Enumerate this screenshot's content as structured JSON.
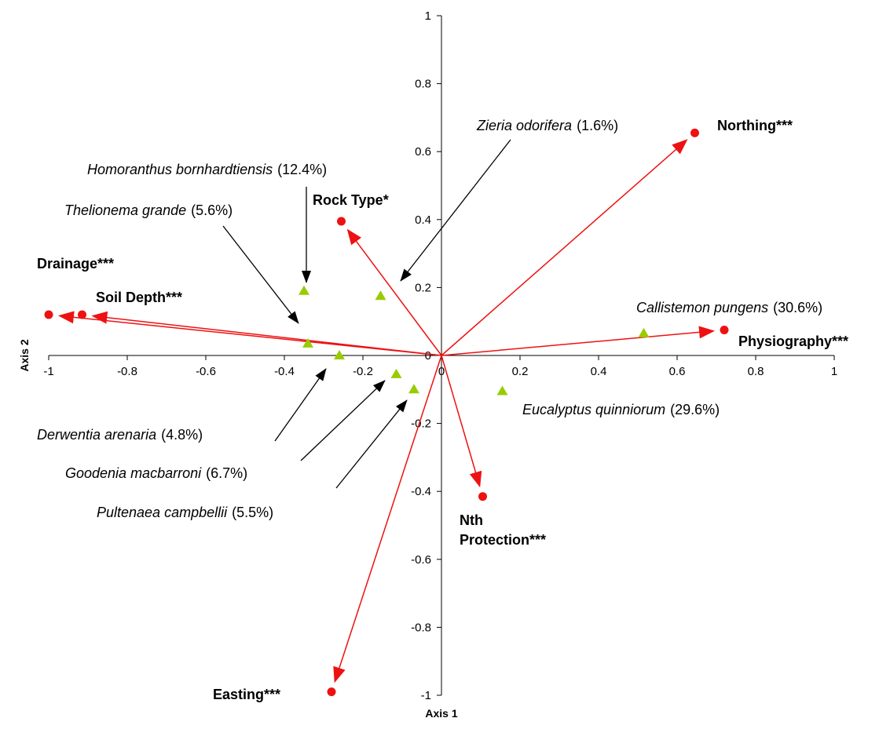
{
  "chart_data": {
    "type": "scatter",
    "xlabel": "Axis 1",
    "ylabel": "Axis 2",
    "xlim": [
      -1,
      1
    ],
    "ylim": [
      -1,
      1
    ],
    "xticks": [
      -1,
      -0.8,
      -0.6,
      -0.4,
      -0.2,
      0,
      0.2,
      0.4,
      0.6,
      0.8,
      1
    ],
    "yticks": [
      1,
      0.8,
      0.6,
      0.4,
      0.2,
      0,
      -0.2,
      -0.4,
      -0.6,
      -0.8,
      -1
    ],
    "tick_labels_x": [
      "-1",
      "-0.8",
      "-0.6",
      "-0.4",
      "-0.2",
      "0",
      "0.2",
      "0.4",
      "0.6",
      "0.8",
      "1"
    ],
    "tick_labels_y": [
      "1",
      "0.8",
      "0.6",
      "0.4",
      "0.2",
      "0",
      "-0.2",
      "-0.4",
      "-0.6",
      "-0.8",
      "-1"
    ],
    "grid": false,
    "colors": {
      "variable": "#ee1111",
      "species": "#99cc00",
      "pointer": "#000000"
    },
    "variables": [
      {
        "label": "Northing***",
        "x": 0.645,
        "y": 0.655,
        "lines": [
          "Northing***"
        ]
      },
      {
        "label": "Rock Type*",
        "x": -0.255,
        "y": 0.395,
        "lines": [
          "Rock Type*"
        ]
      },
      {
        "label": "Drainage***",
        "x": -1.0,
        "y": 0.12,
        "lines": [
          "Drainage***"
        ]
      },
      {
        "label": "Soil Depth***",
        "x": -0.915,
        "y": 0.12,
        "lines": [
          "Soil Depth***"
        ]
      },
      {
        "label": "Physiography***",
        "x": 0.72,
        "y": 0.075,
        "lines": [
          "Physiography***"
        ]
      },
      {
        "label": "Nth Protection***",
        "x": 0.105,
        "y": -0.415,
        "lines": [
          "Nth",
          "Protection***"
        ]
      },
      {
        "label": "Easting***",
        "x": -0.28,
        "y": -0.99,
        "lines": [
          "Easting***"
        ]
      }
    ],
    "species": [
      {
        "name": "Zieria odorifera",
        "pct": "(1.6%)",
        "x": -0.155,
        "y": 0.175
      },
      {
        "name": "Homoranthus bornhardtiensis",
        "pct": "(12.4%)",
        "x": -0.35,
        "y": 0.19
      },
      {
        "name": "Thelionema grande",
        "pct": "(5.6%)",
        "x": -0.34,
        "y": 0.035
      },
      {
        "name": "Callistemon pungens",
        "pct": "(30.6%)",
        "x": 0.515,
        "y": 0.065
      },
      {
        "name": "Derwentia arenaria",
        "pct": "(4.8%)",
        "x": -0.26,
        "y": 0.0
      },
      {
        "name": "Goodenia macbarroni",
        "pct": "(6.7%)",
        "x": -0.115,
        "y": -0.055
      },
      {
        "name": "Pultenaea campbellii",
        "pct": "(5.5%)",
        "x": -0.07,
        "y": -0.1
      },
      {
        "name": "Eucalyptus quinniorum",
        "pct": "(29.6%)",
        "x": 0.155,
        "y": -0.105
      }
    ]
  }
}
